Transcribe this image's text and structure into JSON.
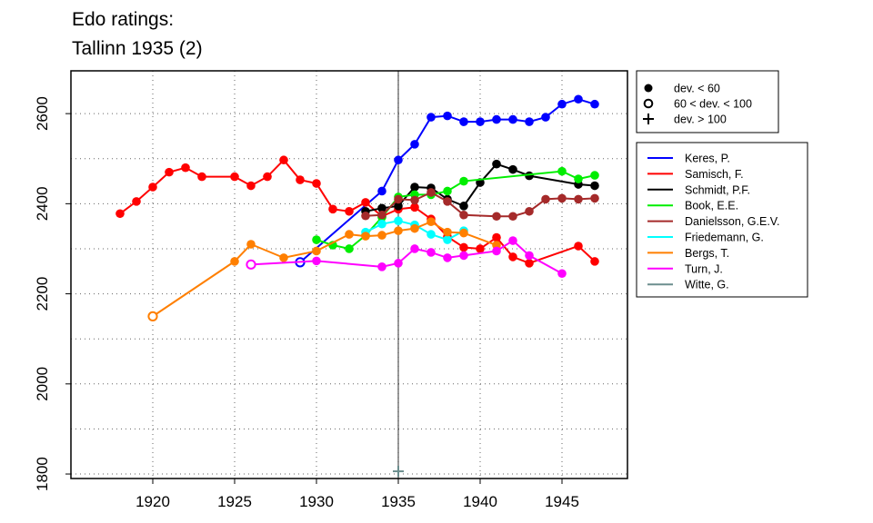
{
  "chart_data": {
    "type": "line",
    "title_lines": [
      "Edo ratings:",
      "Tallinn 1935 (2)"
    ],
    "xlabel": "",
    "ylabel": "",
    "xlim": [
      1915,
      1949
    ],
    "ylim": [
      1790,
      2695
    ],
    "x_ticks": [
      1920,
      1925,
      1930,
      1935,
      1940,
      1945
    ],
    "y_ticks": [
      1800,
      2000,
      2200,
      2400,
      2600
    ],
    "y_grid": [
      1800,
      1900,
      2000,
      2100,
      2200,
      2300,
      2400,
      2500,
      2600
    ],
    "x_grid": [
      1920,
      1925,
      1930,
      1935,
      1940,
      1945
    ],
    "grid": "dotted",
    "event_year": 1935,
    "deviation_legend": [
      {
        "symbol": "filled-circle",
        "label": "dev. < 60"
      },
      {
        "symbol": "open-circle",
        "label": "60 < dev. < 100"
      },
      {
        "symbol": "plus",
        "label": "dev. > 100"
      }
    ],
    "legend_position": "right",
    "series": [
      {
        "name": "Keres, P.",
        "color": "#0000ff",
        "points": [
          [
            1929,
            2270,
            "o"
          ],
          [
            1934,
            2428,
            "f"
          ],
          [
            1935,
            2497,
            "f"
          ],
          [
            1936,
            2532,
            "f"
          ],
          [
            1937,
            2592,
            "f"
          ],
          [
            1938,
            2595,
            "f"
          ],
          [
            1939,
            2582,
            "f"
          ],
          [
            1940,
            2582,
            "f"
          ],
          [
            1941,
            2587,
            "f"
          ],
          [
            1942,
            2587,
            "f"
          ],
          [
            1943,
            2582,
            "f"
          ],
          [
            1944,
            2592,
            "f"
          ],
          [
            1945,
            2621,
            "f"
          ],
          [
            1946,
            2632,
            "f"
          ],
          [
            1947,
            2621,
            "f"
          ]
        ]
      },
      {
        "name": "Samisch, F.",
        "color": "#ff0000",
        "points": [
          [
            1918,
            2378,
            "f"
          ],
          [
            1919,
            2405,
            "f"
          ],
          [
            1920,
            2437,
            "f"
          ],
          [
            1921,
            2470,
            "f"
          ],
          [
            1922,
            2480,
            "f"
          ],
          [
            1923,
            2460,
            "f"
          ],
          [
            1925,
            2460,
            "f"
          ],
          [
            1926,
            2440,
            "f"
          ],
          [
            1927,
            2460,
            "f"
          ],
          [
            1928,
            2497,
            "f"
          ],
          [
            1929,
            2453,
            "f"
          ],
          [
            1930,
            2445,
            "f"
          ],
          [
            1931,
            2388,
            "f"
          ],
          [
            1932,
            2383,
            "f"
          ],
          [
            1933,
            2403,
            "f"
          ],
          [
            1934,
            2372,
            "f"
          ],
          [
            1935,
            2388,
            "f"
          ],
          [
            1936,
            2392,
            "f"
          ],
          [
            1937,
            2366,
            "f"
          ],
          [
            1938,
            2327,
            "f"
          ],
          [
            1939,
            2303,
            "f"
          ],
          [
            1940,
            2300,
            "f"
          ],
          [
            1941,
            2325,
            "f"
          ],
          [
            1942,
            2282,
            "f"
          ],
          [
            1943,
            2268,
            "f"
          ],
          [
            1946,
            2306,
            "f"
          ],
          [
            1947,
            2272,
            "f"
          ]
        ]
      },
      {
        "name": "Schmidt, P.F.",
        "color": "#000000",
        "points": [
          [
            1933,
            2383,
            "f"
          ],
          [
            1934,
            2390,
            "f"
          ],
          [
            1935,
            2395,
            "f"
          ],
          [
            1936,
            2437,
            "f"
          ],
          [
            1937,
            2435,
            "f"
          ],
          [
            1938,
            2410,
            "f"
          ],
          [
            1939,
            2395,
            "f"
          ],
          [
            1940,
            2447,
            "f"
          ],
          [
            1941,
            2488,
            "f"
          ],
          [
            1942,
            2476,
            "f"
          ],
          [
            1943,
            2462,
            "f"
          ],
          [
            1946,
            2443,
            "f"
          ],
          [
            1947,
            2440,
            "f"
          ]
        ]
      },
      {
        "name": "Book, E.E.",
        "color": "#00ee00",
        "points": [
          [
            1930,
            2320,
            "f"
          ],
          [
            1931,
            2308,
            "f"
          ],
          [
            1932,
            2300,
            "f"
          ],
          [
            1933,
            2330,
            "f"
          ],
          [
            1934,
            2370,
            "f"
          ],
          [
            1935,
            2415,
            "f"
          ],
          [
            1936,
            2420,
            "f"
          ],
          [
            1937,
            2420,
            "f"
          ],
          [
            1938,
            2428,
            "f"
          ],
          [
            1939,
            2450,
            "f"
          ],
          [
            1945,
            2472,
            "f"
          ],
          [
            1946,
            2455,
            "f"
          ],
          [
            1947,
            2463,
            "f"
          ]
        ]
      },
      {
        "name": "Danielsson, G.E.V.",
        "color": "#a52a2a",
        "points": [
          [
            1933,
            2373,
            "f"
          ],
          [
            1934,
            2375,
            "f"
          ],
          [
            1935,
            2410,
            "f"
          ],
          [
            1936,
            2408,
            "f"
          ],
          [
            1937,
            2425,
            "f"
          ],
          [
            1938,
            2405,
            "f"
          ],
          [
            1939,
            2375,
            "f"
          ],
          [
            1941,
            2372,
            "f"
          ],
          [
            1942,
            2372,
            "f"
          ],
          [
            1943,
            2383,
            "f"
          ],
          [
            1944,
            2410,
            "f"
          ],
          [
            1945,
            2412,
            "f"
          ],
          [
            1946,
            2410,
            "f"
          ],
          [
            1947,
            2412,
            "f"
          ]
        ]
      },
      {
        "name": "Friedemann, G.",
        "color": "#00ffff",
        "points": [
          [
            1933,
            2337,
            "f"
          ],
          [
            1934,
            2355,
            "f"
          ],
          [
            1935,
            2362,
            "f"
          ],
          [
            1936,
            2353,
            "f"
          ],
          [
            1937,
            2332,
            "f"
          ],
          [
            1938,
            2320,
            "f"
          ],
          [
            1939,
            2340,
            "f"
          ]
        ]
      },
      {
        "name": "Bergs, T.",
        "color": "#ff7f00",
        "points": [
          [
            1920,
            2150,
            "o"
          ],
          [
            1925,
            2272,
            "f"
          ],
          [
            1926,
            2310,
            "f"
          ],
          [
            1928,
            2280,
            "f"
          ],
          [
            1930,
            2295,
            "f"
          ],
          [
            1932,
            2332,
            "f"
          ],
          [
            1933,
            2328,
            "f"
          ],
          [
            1934,
            2330,
            "f"
          ],
          [
            1935,
            2340,
            "f"
          ],
          [
            1936,
            2345,
            "f"
          ],
          [
            1937,
            2360,
            "f"
          ],
          [
            1938,
            2337,
            "f"
          ],
          [
            1939,
            2335,
            "f"
          ],
          [
            1941,
            2308,
            "f"
          ]
        ]
      },
      {
        "name": "Turn, J.",
        "color": "#ff00ff",
        "points": [
          [
            1926,
            2265,
            "o"
          ],
          [
            1930,
            2273,
            "f"
          ],
          [
            1934,
            2260,
            "f"
          ],
          [
            1935,
            2268,
            "f"
          ],
          [
            1936,
            2300,
            "f"
          ],
          [
            1937,
            2292,
            "f"
          ],
          [
            1938,
            2280,
            "f"
          ],
          [
            1939,
            2285,
            "f"
          ],
          [
            1941,
            2295,
            "f"
          ],
          [
            1942,
            2318,
            "f"
          ],
          [
            1943,
            2285,
            "f"
          ],
          [
            1945,
            2245,
            "f"
          ]
        ]
      },
      {
        "name": "Witte, G.",
        "color": "#6b8e8e",
        "points": [
          [
            1935,
            1806,
            "x"
          ]
        ]
      }
    ]
  }
}
